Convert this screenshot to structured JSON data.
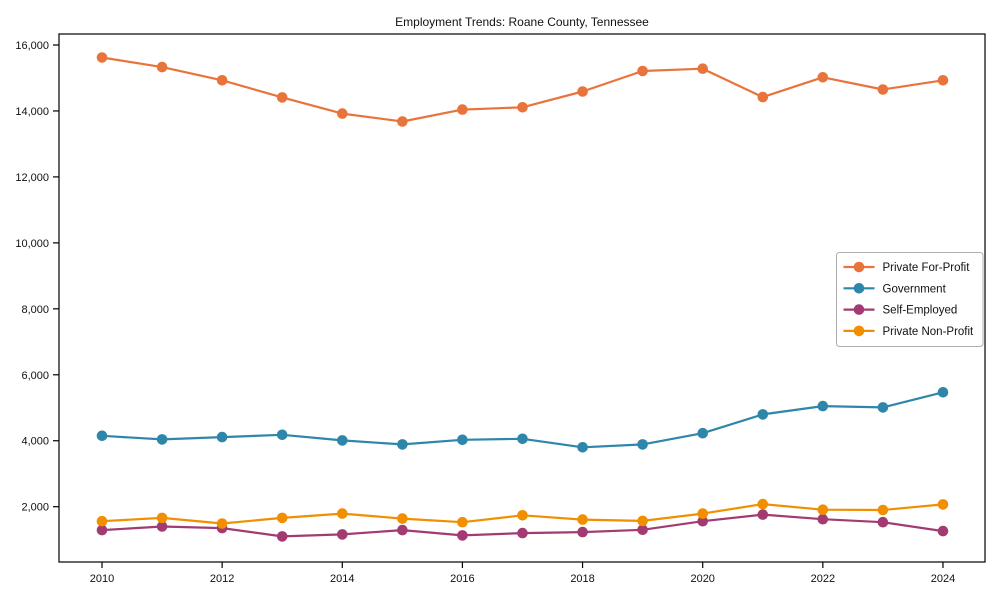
{
  "chart_data": {
    "type": "line",
    "title": "Employment Trends: Roane County, Tennessee",
    "xlabel": "",
    "ylabel": "",
    "x": [
      2010,
      2011,
      2012,
      2013,
      2014,
      2015,
      2016,
      2017,
      2018,
      2019,
      2020,
      2021,
      2022,
      2023,
      2024
    ],
    "series": [
      {
        "name": "Private For-Profit",
        "color": "#E8743B",
        "values": [
          15620,
          15330,
          14930,
          14410,
          13920,
          13680,
          14040,
          14110,
          14590,
          15210,
          15280,
          14420,
          15020,
          14650,
          14930
        ]
      },
      {
        "name": "Government",
        "color": "#2E86AB",
        "values": [
          4150,
          4040,
          4110,
          4180,
          4010,
          3890,
          4030,
          4060,
          3800,
          3890,
          4230,
          4800,
          5050,
          5010,
          5470
        ]
      },
      {
        "name": "Self-Employed",
        "color": "#A23B72",
        "values": [
          1290,
          1400,
          1350,
          1100,
          1160,
          1290,
          1130,
          1200,
          1230,
          1300,
          1560,
          1760,
          1620,
          1530,
          1260
        ]
      },
      {
        "name": "Private Non-Profit",
        "color": "#F18F01",
        "values": [
          1560,
          1660,
          1490,
          1660,
          1790,
          1640,
          1530,
          1740,
          1610,
          1570,
          1790,
          2080,
          1910,
          1900,
          2070
        ]
      }
    ],
    "x_ticks": [
      2010,
      2012,
      2014,
      2016,
      2018,
      2020,
      2022,
      2024
    ],
    "x_tick_labels": [
      "2010",
      "2012",
      "2014",
      "2016",
      "2018",
      "2020",
      "2022",
      "2024"
    ],
    "y_ticks": [
      2000,
      4000,
      6000,
      8000,
      10000,
      12000,
      14000,
      16000
    ],
    "y_tick_labels": [
      "2,000",
      "4,000",
      "6,000",
      "8,000",
      "10,000",
      "12,000",
      "14,000",
      "16,000"
    ],
    "ylim": [
      330,
      16330
    ],
    "xlim": [
      2009.28,
      2024.72
    ],
    "grid": false,
    "legend_position": "center right",
    "axis_color": "#000000",
    "background_color": "#ffffff"
  }
}
